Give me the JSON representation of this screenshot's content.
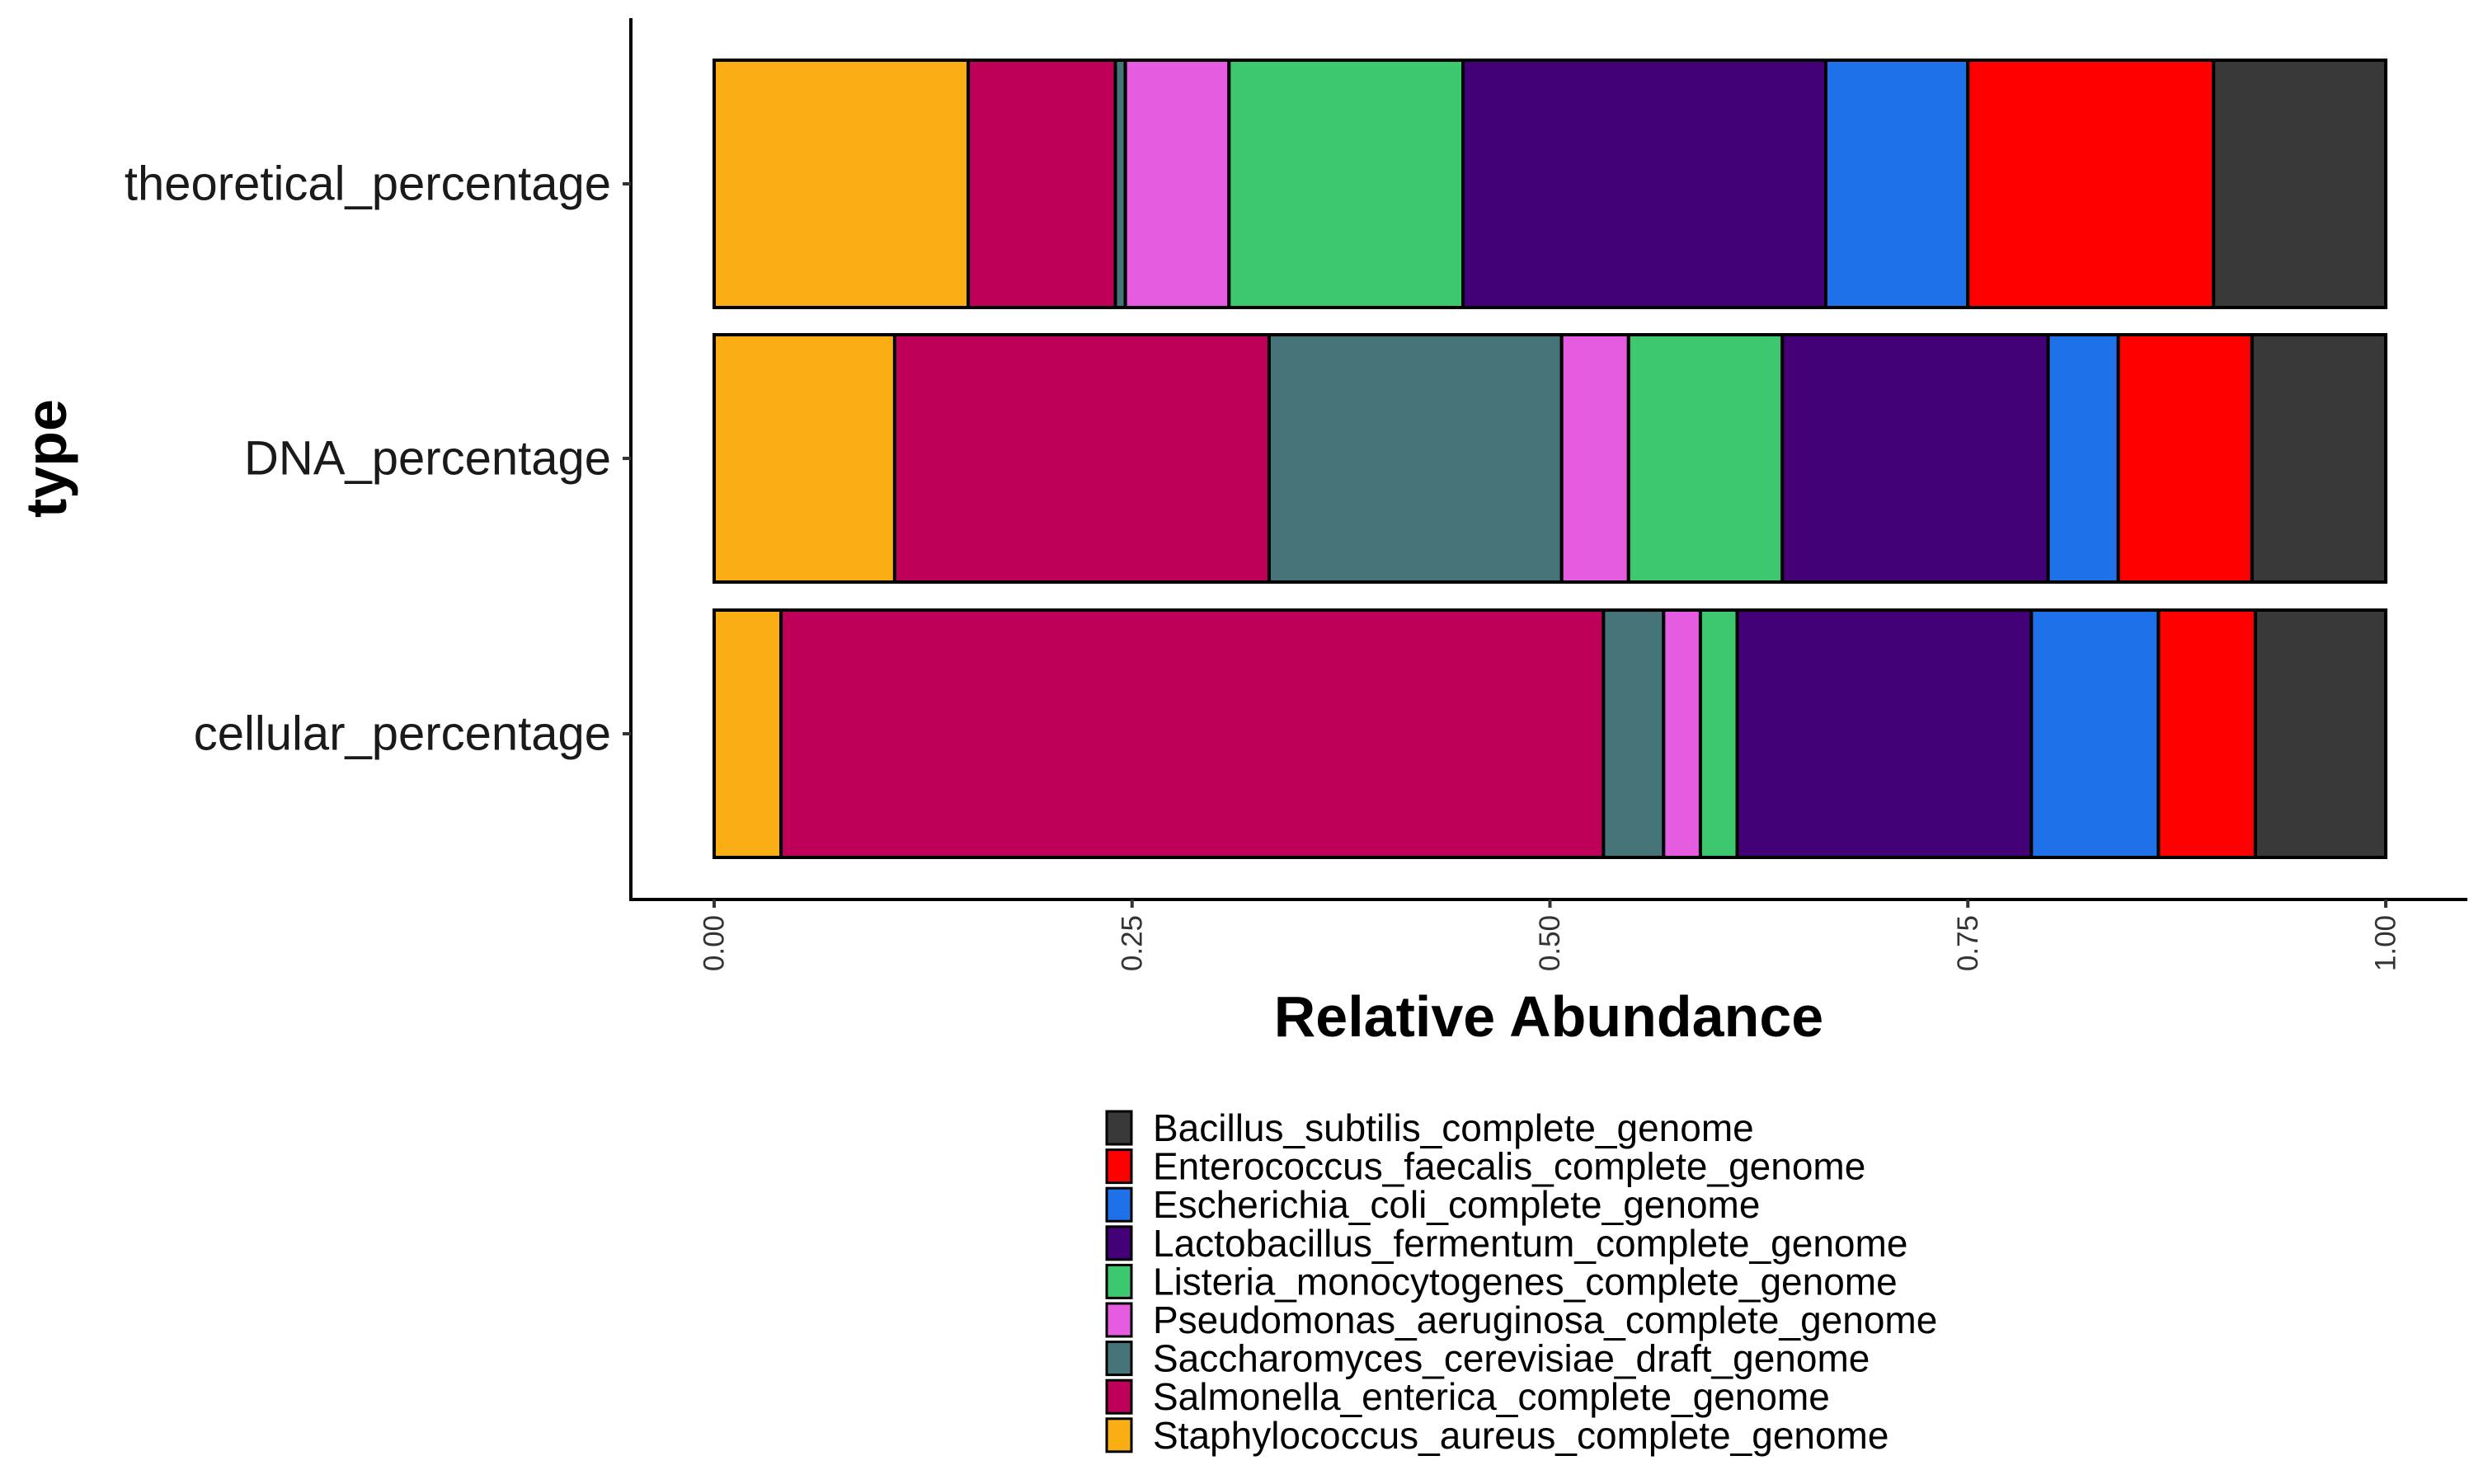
{
  "chart_data": {
    "type": "bar",
    "orientation": "horizontal",
    "stacked": true,
    "title": "",
    "xlabel": "Relative Abundance",
    "ylabel": "type",
    "xlim": [
      0,
      1
    ],
    "xticks": [
      "0.00",
      "0.25",
      "0.50",
      "0.75",
      "1.00"
    ],
    "grid": false,
    "legend_position": "bottom",
    "categories": [
      "theoretical_percentage",
      "DNA_percentage",
      "cellular_percentage"
    ],
    "series": [
      {
        "name": "Staphylococcus_aureus_complete_genome",
        "color": "#FBAD14",
        "values": [
          0.152,
          0.108,
          0.04
        ]
      },
      {
        "name": "Salmonella_enterica_complete_genome",
        "color": "#BE005A",
        "values": [
          0.088,
          0.224,
          0.492
        ]
      },
      {
        "name": "Saccharomyces_cerevisiae_draft_genome",
        "color": "#467579",
        "values": [
          0.006,
          0.175,
          0.036
        ]
      },
      {
        "name": "Pseudomonas_aeruginosa_complete_genome",
        "color": "#E65CE1",
        "values": [
          0.062,
          0.04,
          0.022
        ]
      },
      {
        "name": "Listeria_monocytogenes_complete_genome",
        "color": "#3DC76E",
        "values": [
          0.14,
          0.092,
          0.022
        ]
      },
      {
        "name": "Lactobacillus_fermentum_complete_genome",
        "color": "#440077",
        "values": [
          0.217,
          0.159,
          0.176
        ]
      },
      {
        "name": "Escherichia_coli_complete_genome",
        "color": "#1F71EA",
        "values": [
          0.085,
          0.042,
          0.076
        ]
      },
      {
        "name": "Enterococcus_faecalis_complete_genome",
        "color": "#FF0000",
        "values": [
          0.147,
          0.08,
          0.058
        ]
      },
      {
        "name": "Bacillus_subtilis_complete_genome",
        "color": "#393939",
        "values": [
          0.103,
          0.08,
          0.078
        ]
      }
    ],
    "legend_order": [
      "Bacillus_subtilis_complete_genome",
      "Enterococcus_faecalis_complete_genome",
      "Escherichia_coli_complete_genome",
      "Lactobacillus_fermentum_complete_genome",
      "Listeria_monocytogenes_complete_genome",
      "Pseudomonas_aeruginosa_complete_genome",
      "Saccharomyces_cerevisiae_draft_genome",
      "Salmonella_enterica_complete_genome",
      "Staphylococcus_aureus_complete_genome"
    ]
  }
}
